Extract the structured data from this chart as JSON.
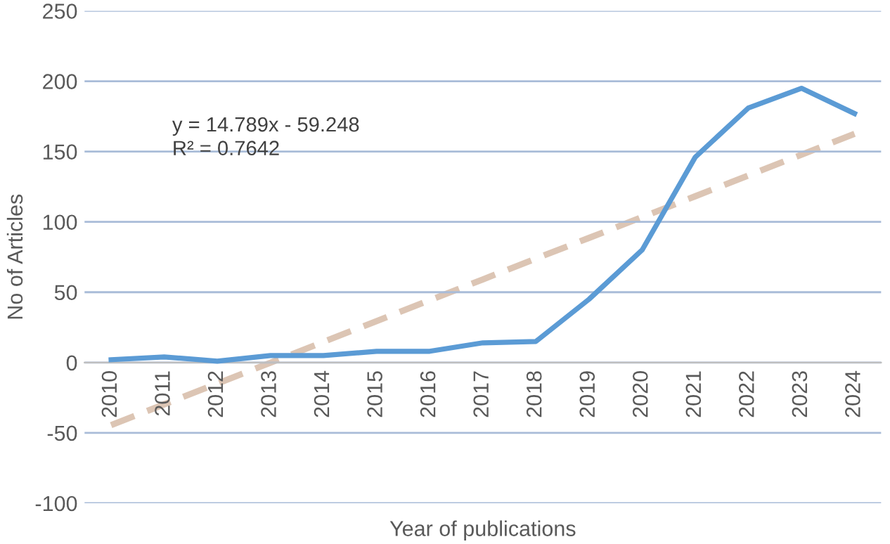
{
  "chart_data": {
    "type": "line",
    "xlabel": "Year of publications",
    "ylabel": "No of Articles",
    "categories": [
      "2010",
      "2011",
      "2012",
      "2013",
      "2014",
      "2015",
      "2016",
      "2017",
      "2018",
      "2019",
      "2020",
      "2021",
      "2022",
      "2023",
      "2024"
    ],
    "series": [
      {
        "color": "#5b9bd5",
        "values": [
          2,
          4,
          1,
          5,
          5,
          8,
          8,
          14,
          15,
          45,
          80,
          146,
          181,
          195,
          177
        ],
        "line_style": "solid"
      },
      {
        "color": "#dcc5b4",
        "values": [
          -44.5,
          -29.7,
          -14.9,
          -0.1,
          14.7,
          29.5,
          44.3,
          59.1,
          73.9,
          88.6,
          103.4,
          118.2,
          133.0,
          147.8,
          162.6
        ],
        "line_style": "dashed"
      }
    ],
    "annotations": [
      "y = 14.789x - 59.248",
      "R² = 0.7642"
    ],
    "ylim": [
      -100,
      250
    ],
    "yticks": [
      -100,
      -50,
      0,
      50,
      100,
      150,
      200,
      250
    ],
    "grid": "y",
    "legend": false,
    "marker": "none"
  }
}
